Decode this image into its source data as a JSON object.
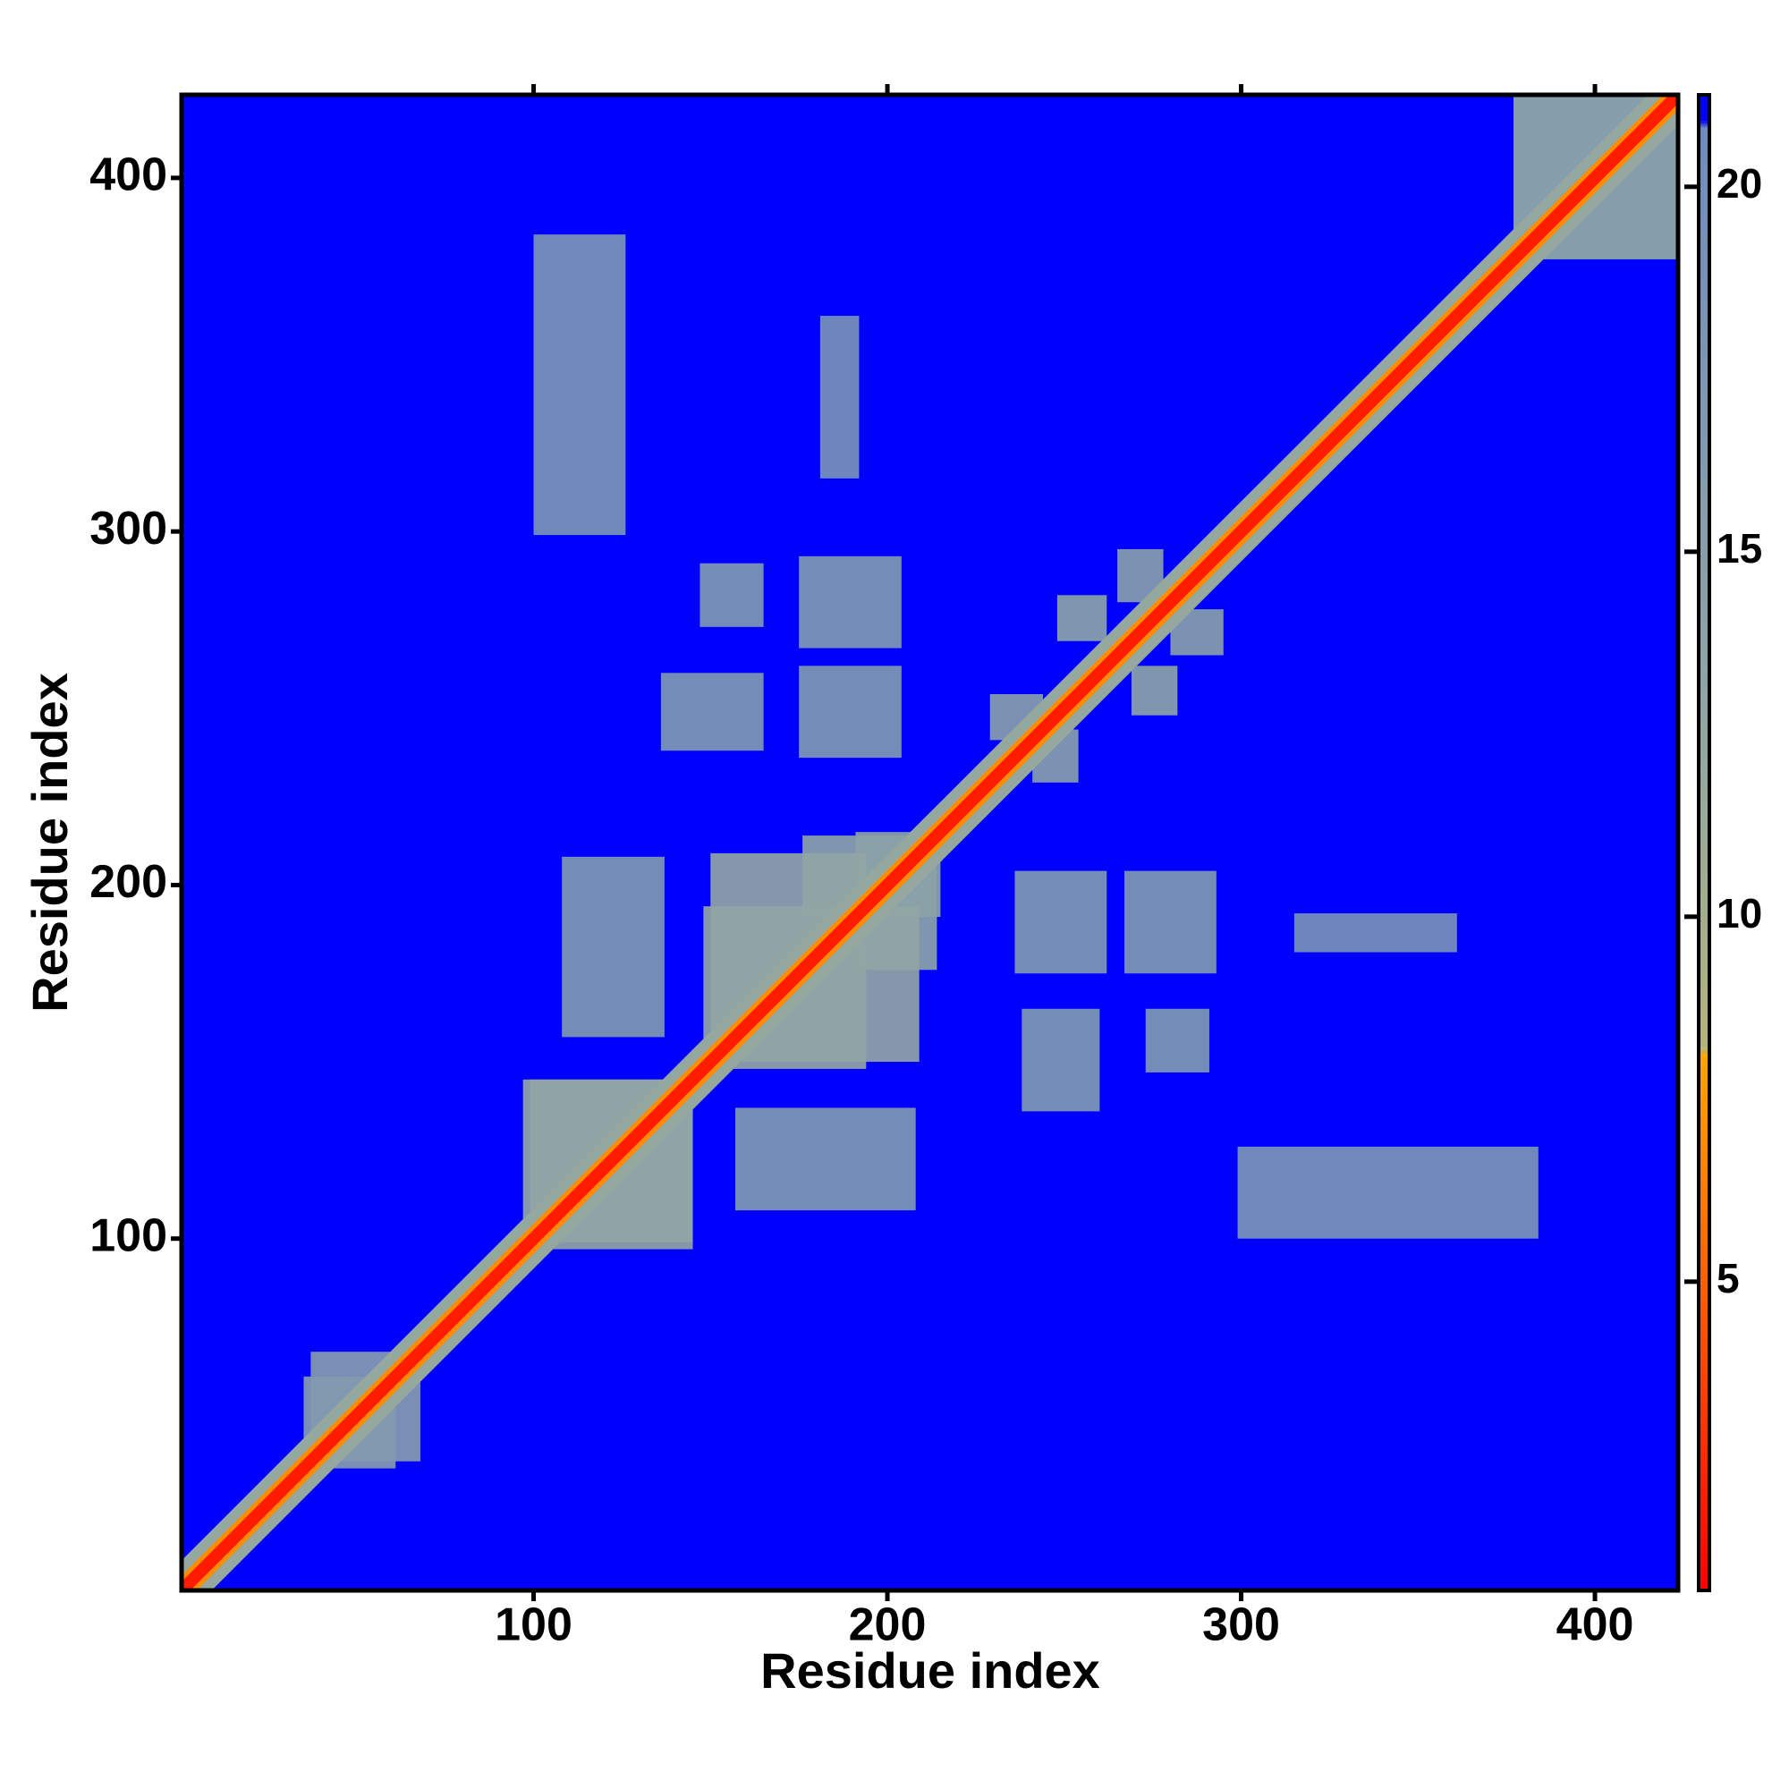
{
  "chart_data": {
    "type": "heatmap",
    "x_label": "Residue index",
    "y_label": "Residue index",
    "xlim": [
      0.5,
      423.5
    ],
    "ylim": [
      0.5,
      423.5
    ],
    "xticks": [
      100,
      200,
      300,
      400
    ],
    "yticks": [
      100,
      200,
      300,
      400
    ],
    "colorbar": {
      "lim": [
        0.77,
        21.26
      ],
      "ticks": [
        5,
        10,
        15,
        20
      ]
    },
    "colorscale": [
      [
        0.77,
        "#ff0000"
      ],
      [
        8.1,
        "#ffa500"
      ],
      [
        8.2,
        "#b4b478"
      ],
      [
        12,
        "#94a8a0"
      ],
      [
        20.8,
        "#6e8cc0"
      ],
      [
        20.9,
        "#0000ff"
      ],
      [
        21.26,
        "#0000ff"
      ]
    ],
    "background": 21.2,
    "symmetric": true,
    "regions": [
      {
        "x": [
          299,
          384
        ],
        "y": [
          100,
          126
        ],
        "value": 18
      },
      {
        "x": [
          236,
          262
        ],
        "y": [
          175,
          204
        ],
        "value": 17
      },
      {
        "x": [
          267,
          293
        ],
        "y": [
          175,
          204
        ],
        "value": 17
      },
      {
        "x": [
          238,
          260
        ],
        "y": [
          136,
          165
        ],
        "value": 17
      },
      {
        "x": [
          273,
          291
        ],
        "y": [
          147,
          165
        ],
        "value": 17
      },
      {
        "x": [
          157,
          208
        ],
        "y": [
          108,
          137
        ],
        "value": 17
      },
      {
        "x": [
          315,
          361
        ],
        "y": [
          181,
          192
        ],
        "value": 19
      },
      {
        "x": [
          280,
          295
        ],
        "y": [
          265,
          278
        ],
        "value": 15
      },
      {
        "x": [
          269,
          282
        ],
        "y": [
          248,
          262
        ],
        "value": 14
      },
      {
        "x": [
          241,
          254
        ],
        "y": [
          229,
          244
        ],
        "value": 15
      },
      {
        "x": [
          377,
          423.5
        ],
        "y": [
          377,
          423.5
        ],
        "value": 15
      },
      {
        "x": [
          37,
          61
        ],
        "y": [
          35,
          68
        ],
        "value": 16
      },
      {
        "x": [
          176,
          215
        ],
        "y": [
          191,
          214
        ],
        "value": 14
      },
      {
        "x": [
          148,
          209
        ],
        "y": [
          150,
          194
        ],
        "value": 13
      },
      {
        "x": [
          99,
          145
        ],
        "y": [
          97,
          145
        ],
        "value": 13
      }
    ],
    "diagonal": [
      {
        "width": 12,
        "value": 12
      },
      {
        "width": 6,
        "value": 7
      },
      {
        "width": 3.5,
        "value": 2
      }
    ]
  }
}
